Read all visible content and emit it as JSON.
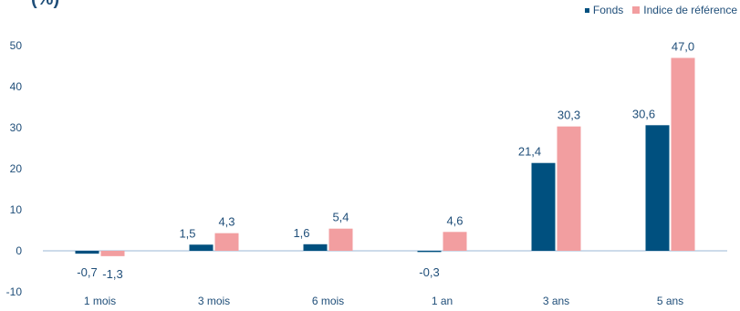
{
  "header": {
    "title_fragment": "(%)"
  },
  "colors": {
    "fonds": "#00507f",
    "indice": "#f29ea0",
    "axis_text": "#1f4e79",
    "baseline": "#9bb7d4"
  },
  "chart_data": {
    "type": "bar",
    "categories": [
      "1 mois",
      "3 mois",
      "6 mois",
      "1 an",
      "3 ans",
      "5 ans"
    ],
    "series": [
      {
        "name": "Fonds",
        "values": [
          -0.7,
          1.5,
          1.6,
          -0.3,
          21.4,
          30.6
        ],
        "labels": [
          "-0,7",
          "1,5",
          "1,6",
          "-0,3",
          "21,4",
          "30,6"
        ]
      },
      {
        "name": "Indice de référence",
        "values": [
          -1.3,
          4.3,
          5.4,
          4.6,
          30.3,
          47.0
        ],
        "labels": [
          "-1,3",
          "4,3",
          "5,4",
          "4,6",
          "30,3",
          "47,0"
        ]
      }
    ],
    "ylim": [
      -10,
      50
    ],
    "yticks": [
      -10,
      0,
      10,
      20,
      30,
      40,
      50
    ],
    "legend_position": "top-right",
    "grid": false
  }
}
